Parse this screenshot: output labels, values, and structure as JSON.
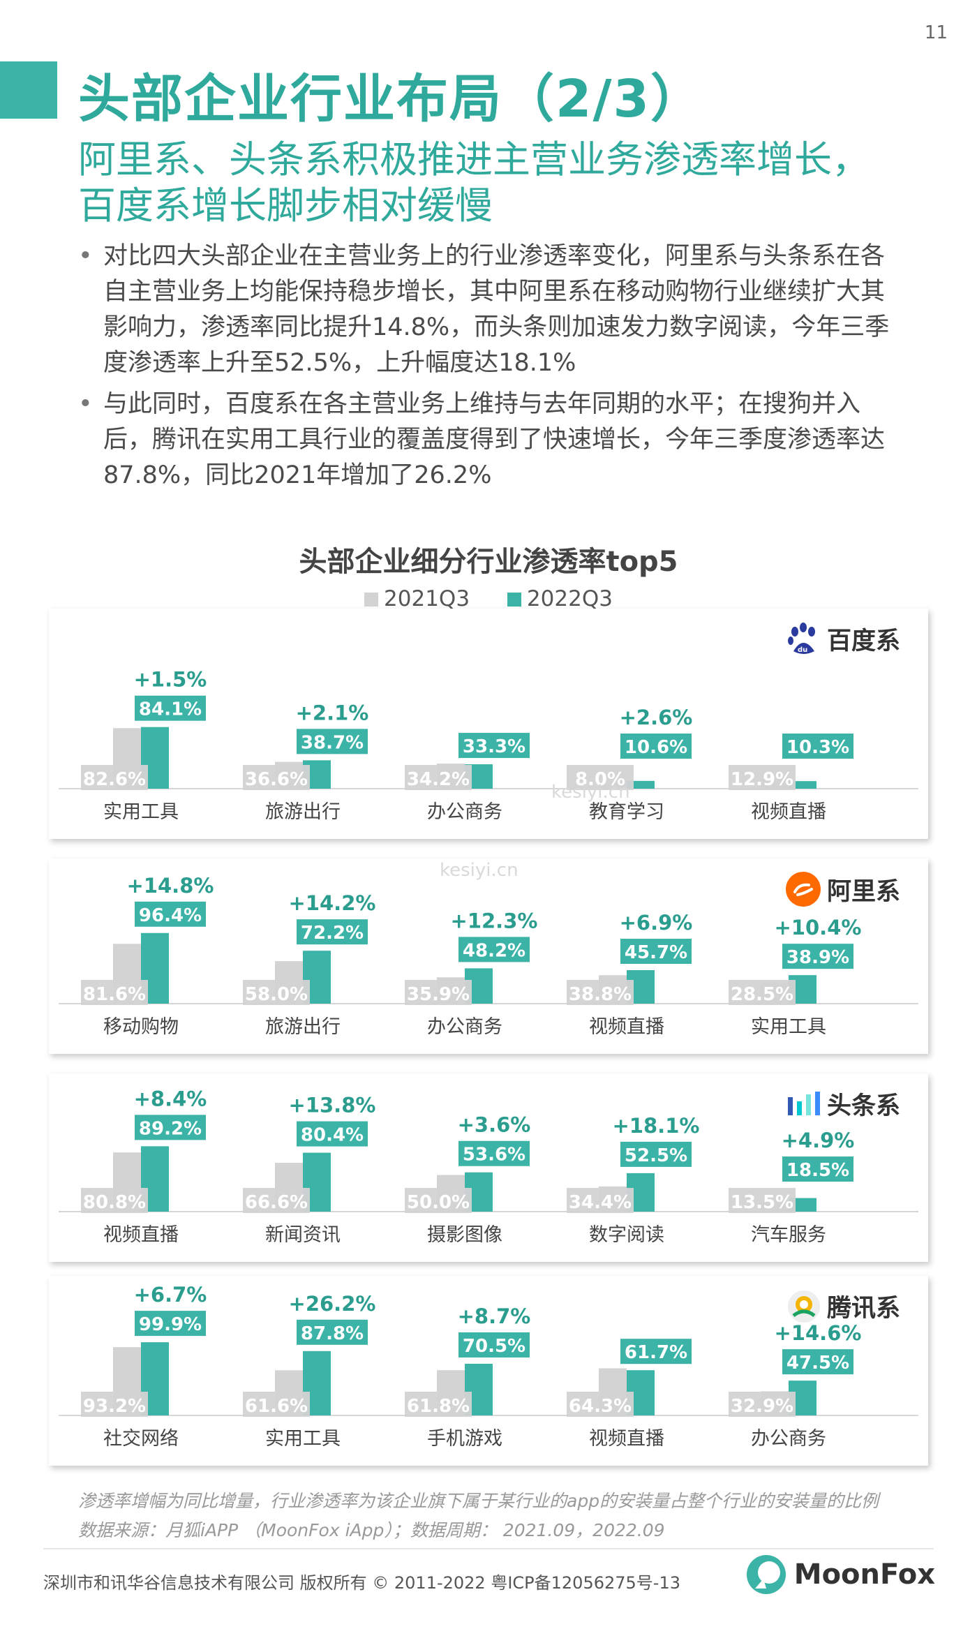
{
  "page": {
    "number": "11"
  },
  "header": {
    "title": "头部企业行业布局（2/3）",
    "subtitle_lines": [
      "阿里系、头条系积极推进主营业务渗透率增长，",
      "百度系增长脚步相对缓慢"
    ]
  },
  "bullets": [
    "对比四大头部企业在主营业务上的行业渗透率变化，阿里系与头条系在各自主营业务上均能保持稳步增长，其中阿里系在移动购物行业继续扩大其影响力，渗透率同比提升14.8%，而头条则加速发力数字阅读，今年三季度渗透率上升至52.5%，上升幅度达18.1%",
    "与此同时，百度系在各主营业务上维持与去年同期的水平；在搜狗并入后，腾讯在实用工具行业的覆盖度得到了快速增长，今年三季度渗透率达87.8%，同比2021年增加了26.2%"
  ],
  "colors": {
    "teal": "#3bb3a6",
    "gray": "#d3d3d3",
    "title_teal": "#2fa99b",
    "label_text": "#ffffff",
    "delta_text": "#2a9d8f"
  },
  "chart_data": {
    "type": "bar",
    "title": "头部企业细分行业渗透率top5",
    "legend": [
      "2021Q3",
      "2022Q3"
    ],
    "ylim": [
      0,
      100
    ],
    "panels": [
      {
        "brand": "百度系",
        "icon": "baidu-paw-icon",
        "categories": [
          "实用工具",
          "旅游出行",
          "办公商务",
          "教育学习",
          "视频直播"
        ],
        "series": [
          {
            "name": "2021Q3",
            "values": [
              82.6,
              36.6,
              34.2,
              8.0,
              12.9
            ]
          },
          {
            "name": "2022Q3",
            "values": [
              84.1,
              38.7,
              33.3,
              10.6,
              10.3
            ]
          }
        ],
        "value_labels_2021": [
          "82.6%",
          "36.6%",
          "34.2%",
          "8.0%",
          "12.9%"
        ],
        "value_labels_2022": [
          "84.1%",
          "38.7%",
          "33.3%",
          "10.6%",
          "10.3%"
        ],
        "deltas": [
          "+1.5%",
          "+2.1%",
          "",
          "+2.6%",
          ""
        ]
      },
      {
        "brand": "阿里系",
        "icon": "alibaba-logo-icon",
        "categories": [
          "移动购物",
          "旅游出行",
          "办公商务",
          "视频直播",
          "实用工具"
        ],
        "series": [
          {
            "name": "2021Q3",
            "values": [
              81.6,
              58.0,
              35.9,
              38.8,
              28.5
            ]
          },
          {
            "name": "2022Q3",
            "values": [
              96.4,
              72.2,
              48.2,
              45.7,
              38.9
            ]
          }
        ],
        "value_labels_2021": [
          "81.6%",
          "58.0%",
          "35.9%",
          "38.8%",
          "28.5%"
        ],
        "value_labels_2022": [
          "96.4%",
          "72.2%",
          "48.2%",
          "45.7%",
          "38.9%"
        ],
        "deltas": [
          "+14.8%",
          "+14.2%",
          "+12.3%",
          "+6.9%",
          "+10.4%"
        ]
      },
      {
        "brand": "头条系",
        "icon": "bytedance-bars-icon",
        "categories": [
          "视频直播",
          "新闻资讯",
          "摄影图像",
          "数字阅读",
          "汽车服务"
        ],
        "series": [
          {
            "name": "2021Q3",
            "values": [
              80.8,
              66.6,
              50.0,
              34.4,
              13.5
            ]
          },
          {
            "name": "2022Q3",
            "values": [
              89.2,
              80.4,
              53.6,
              52.5,
              18.5
            ]
          }
        ],
        "value_labels_2021": [
          "80.8%",
          "66.6%",
          "50.0%",
          "34.4%",
          "13.5%"
        ],
        "value_labels_2022": [
          "89.2%",
          "80.4%",
          "53.6%",
          "52.5%",
          "18.5%"
        ],
        "deltas": [
          "+8.4%",
          "+13.8%",
          "+3.6%",
          "+18.1%",
          "+4.9%"
        ]
      },
      {
        "brand": "腾讯系",
        "icon": "tencent-logo-icon",
        "categories": [
          "社交网络",
          "实用工具",
          "手机游戏",
          "视频直播",
          "办公商务"
        ],
        "series": [
          {
            "name": "2021Q3",
            "values": [
              93.2,
              61.6,
              61.8,
              64.3,
              32.9
            ]
          },
          {
            "name": "2022Q3",
            "values": [
              99.9,
              87.8,
              70.5,
              61.7,
              47.5
            ]
          }
        ],
        "value_labels_2021": [
          "93.2%",
          "61.6%",
          "61.8%",
          "64.3%",
          "32.9%"
        ],
        "value_labels_2022": [
          "99.9%",
          "87.8%",
          "70.5%",
          "61.7%",
          "47.5%"
        ],
        "deltas": [
          "+6.7%",
          "+26.2%",
          "+8.7%",
          "",
          "+14.6%"
        ]
      }
    ]
  },
  "footnotes": [
    "渗透率增幅为同比增量，行业渗透率为该企业旗下属于某行业的app的安装量占整个行业的安装量的比例",
    "数据来源：月狐iAPP （MoonFox iApp）；数据周期： 2021.09，2022.09"
  ],
  "footer": {
    "copyright": "深圳市和讯华谷信息技术有限公司 版权所有 © 2011-2022 粤ICP备12056275号-13",
    "logo_text": "MoonFox"
  },
  "watermark": {
    "text": "kesiyi.cn"
  }
}
